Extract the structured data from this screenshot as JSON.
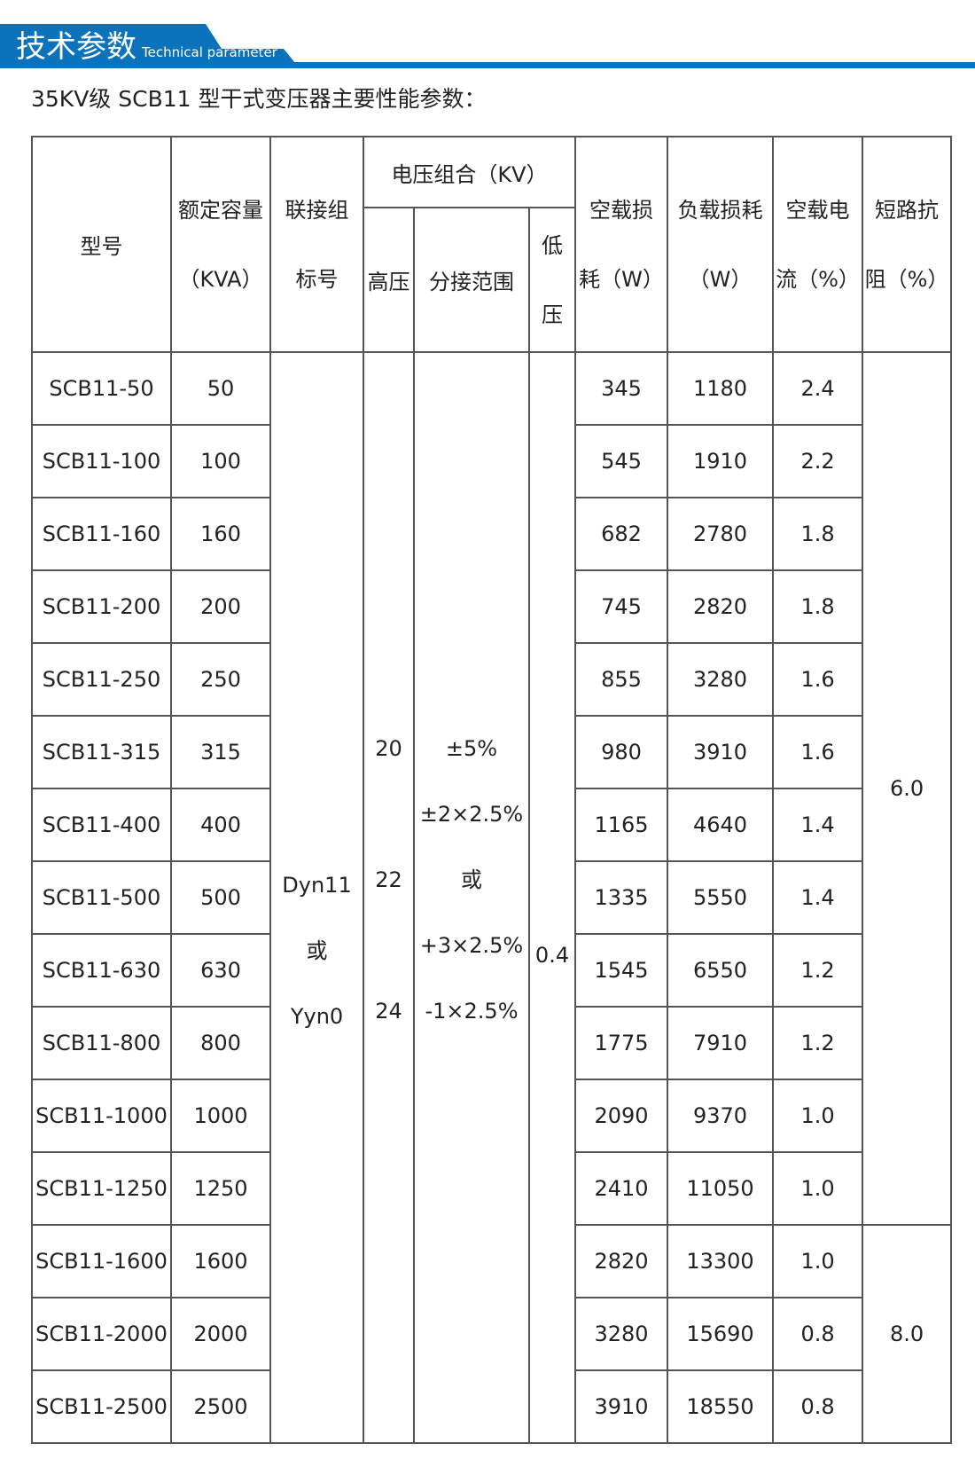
{
  "header": {
    "title": "技术参数",
    "subtitle": "Technical parameter",
    "accent": "#0a73bb"
  },
  "caption": "35KV级 SCB11 型干式变压器主要性能参数：",
  "table": {
    "headers": {
      "model": "型号",
      "capacity": [
        "额定容量",
        "（KVA）"
      ],
      "group": [
        "联接组",
        "标号"
      ],
      "voltage": "电压组合（KV）",
      "hv": "高压",
      "tap": "分接范围",
      "lv": [
        "低",
        "压"
      ],
      "noload_loss": [
        "空载损",
        "耗（W）"
      ],
      "load_loss": [
        "负载损耗",
        "（W）"
      ],
      "noload_current": [
        "空载电",
        "流（%）"
      ],
      "impedance": [
        "短路抗",
        "阻（%）"
      ]
    },
    "group_value": [
      "Dyn11",
      "或",
      "Yyn0"
    ],
    "hv_value": [
      "20",
      "22",
      "24"
    ],
    "tap_value": [
      "±5%",
      "±2×2.5%",
      "或",
      "+3×2.5%",
      "-1×2.5%"
    ],
    "lv_value": "0.4",
    "impedance_values": [
      "6.0",
      "8.0"
    ],
    "rows": [
      [
        "SCB11-50",
        "50",
        "345",
        "1180",
        "2.4"
      ],
      [
        "SCB11-100",
        "100",
        "545",
        "1910",
        "2.2"
      ],
      [
        "SCB11-160",
        "160",
        "682",
        "2780",
        "1.8"
      ],
      [
        "SCB11-200",
        "200",
        "745",
        "2820",
        "1.8"
      ],
      [
        "SCB11-250",
        "250",
        "855",
        "3280",
        "1.6"
      ],
      [
        "SCB11-315",
        "315",
        "980",
        "3910",
        "1.6"
      ],
      [
        "SCB11-400",
        "400",
        "1165",
        "4640",
        "1.4"
      ],
      [
        "SCB11-500",
        "500",
        "1335",
        "5550",
        "1.4"
      ],
      [
        "SCB11-630",
        "630",
        "1545",
        "6550",
        "1.2"
      ],
      [
        "SCB11-800",
        "800",
        "1775",
        "7910",
        "1.2"
      ],
      [
        "SCB11-1000",
        "1000",
        "2090",
        "9370",
        "1.0"
      ],
      [
        "SCB11-1250",
        "1250",
        "2410",
        "11050",
        "1.0"
      ],
      [
        "SCB11-1600",
        "1600",
        "2820",
        "13300",
        "1.0"
      ],
      [
        "SCB11-2000",
        "2000",
        "3280",
        "15690",
        "0.8"
      ],
      [
        "SCB11-2500",
        "2500",
        "3910",
        "18550",
        "0.8"
      ]
    ]
  }
}
